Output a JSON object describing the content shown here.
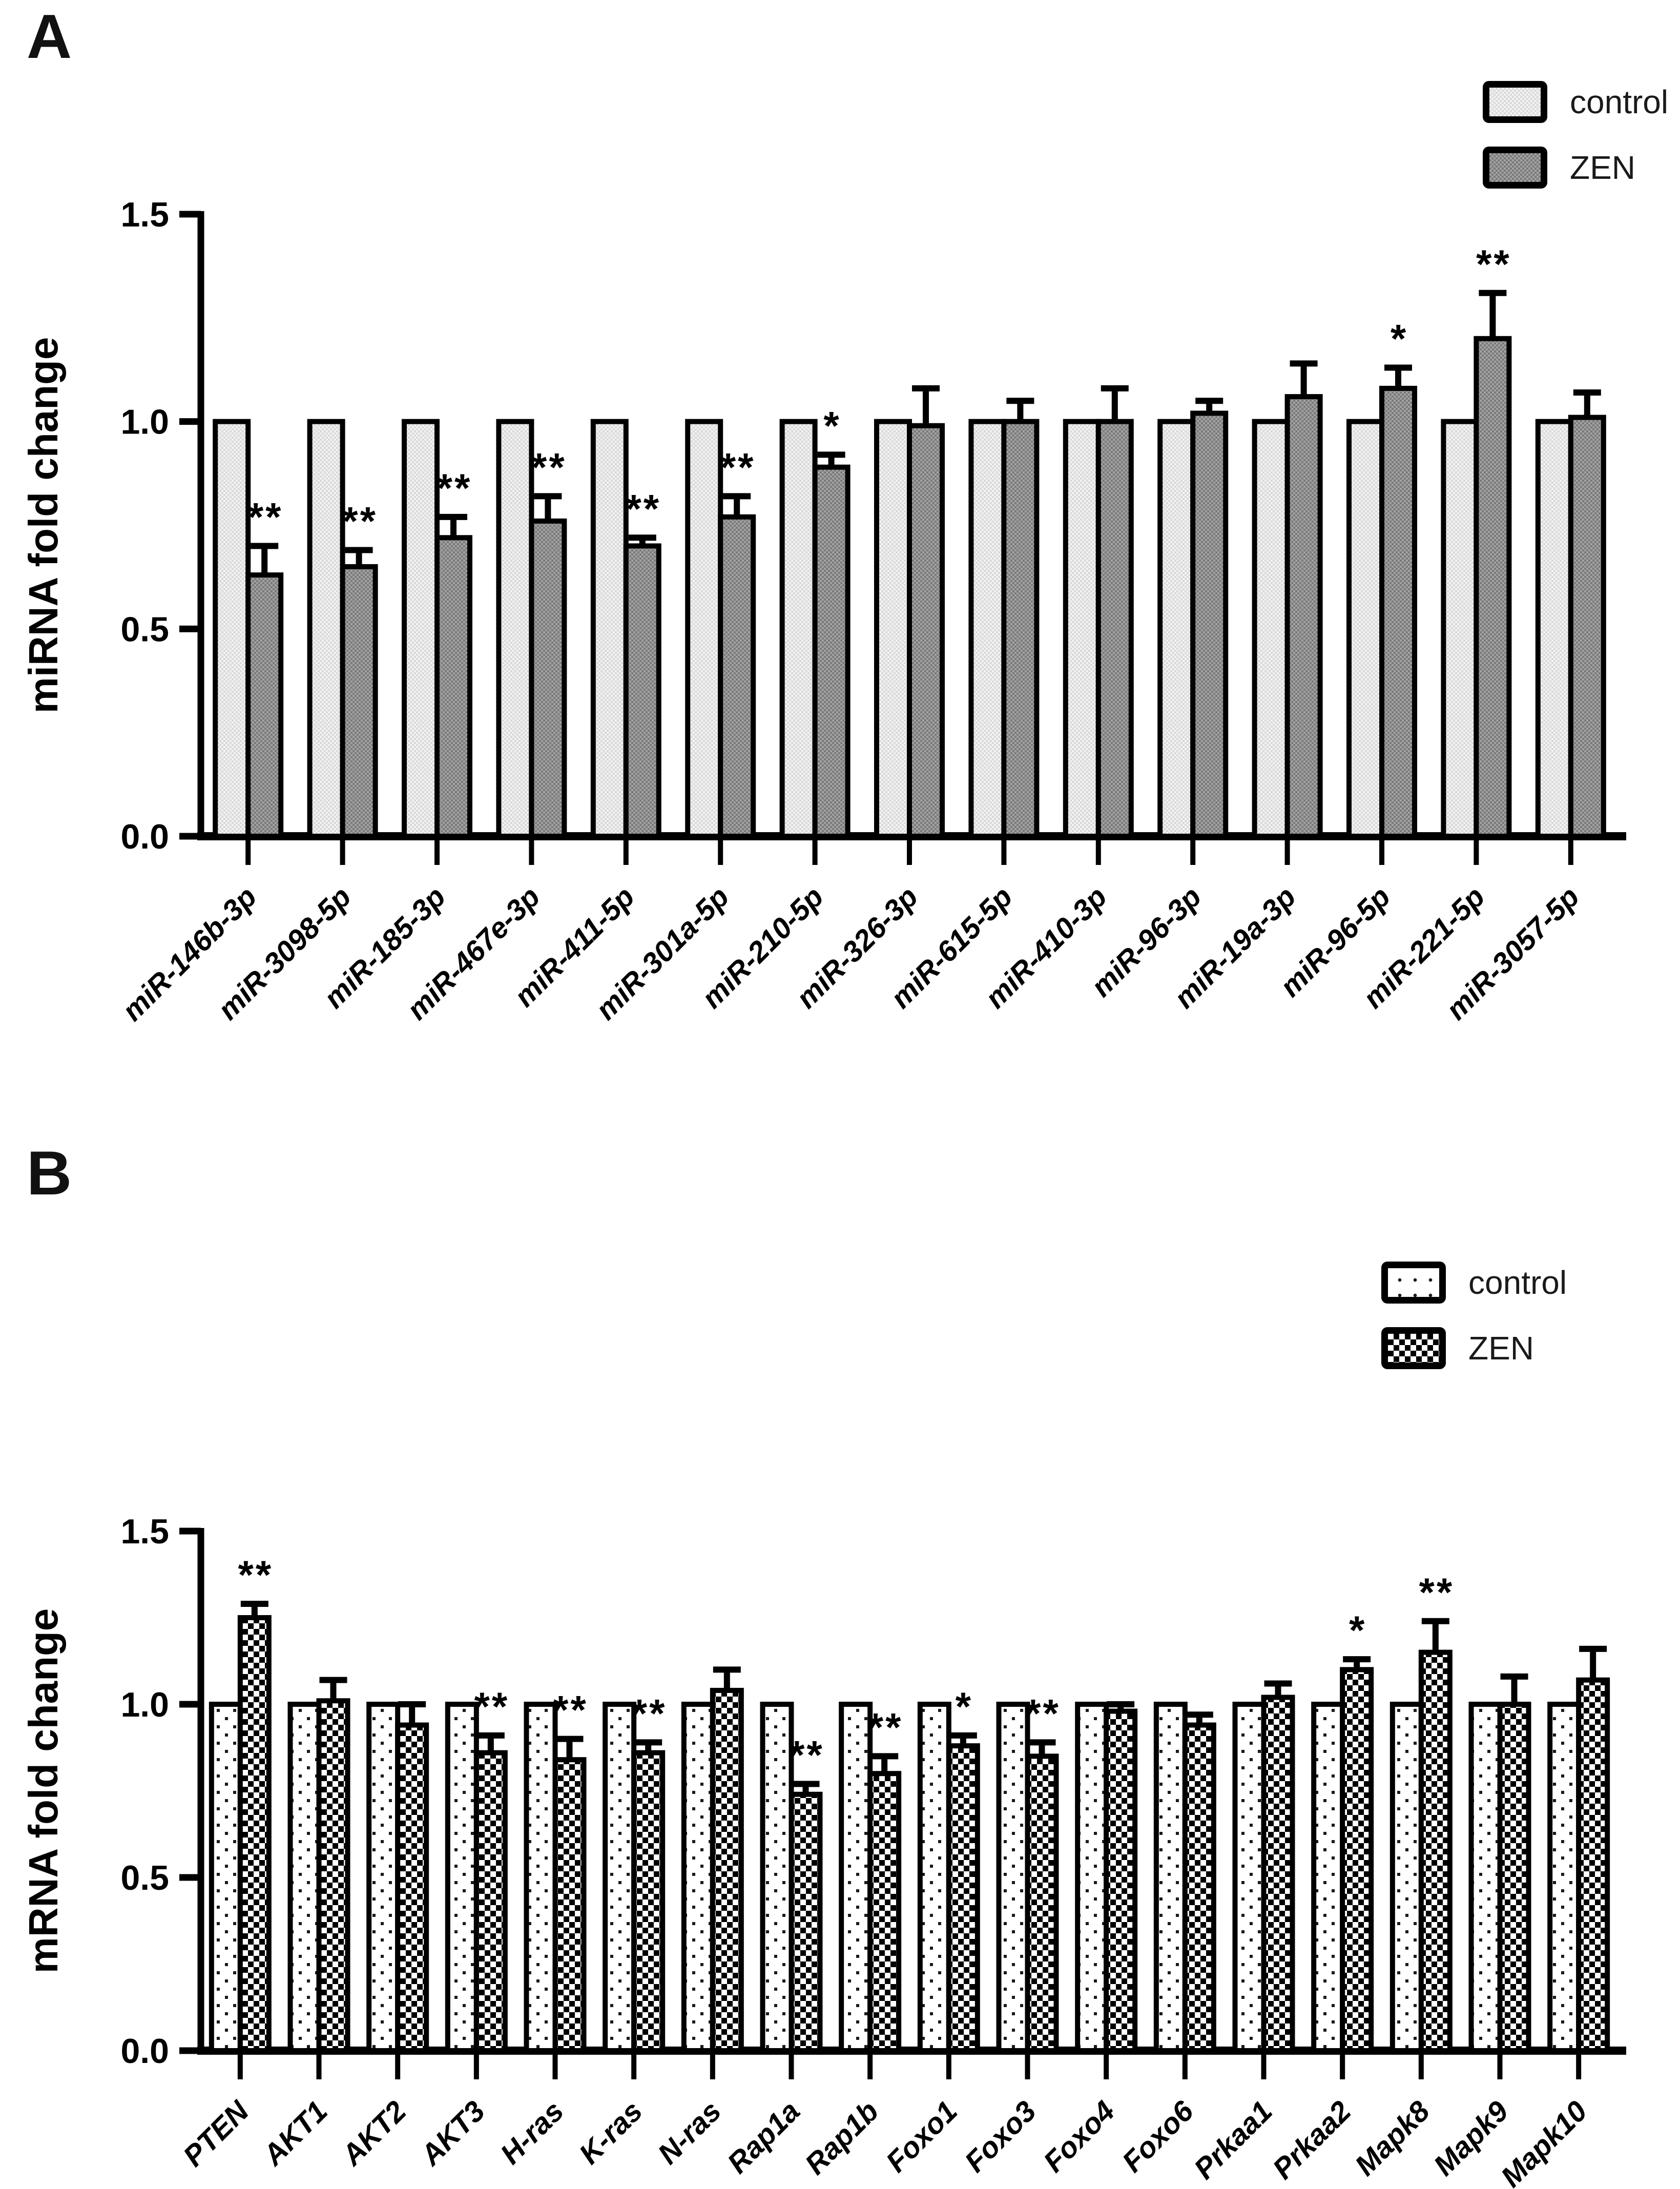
{
  "figure": {
    "panels": [
      {
        "panel_label": "A",
        "legend": {
          "position": "top-right",
          "items": [
            {
              "key": "control",
              "label": "control",
              "swatch": "light-gray-halftone"
            },
            {
              "key": "zen",
              "label": "ZEN",
              "swatch": "dark-gray-halftone"
            }
          ]
        },
        "chart_data": {
          "type": "bar",
          "title": "",
          "xlabel": "",
          "ylabel": "miRNA fold change",
          "ylim": [
            0,
            1.5
          ],
          "yticks": [
            0,
            0.5,
            1.0,
            1.5
          ],
          "ytick_labels": [
            "0.0",
            "0.5",
            "1.0",
            "1.5"
          ],
          "grid": false,
          "legend_position": "top-right",
          "categories": [
            "miR-146b-3p",
            "miR-3098-5p",
            "miR-185-3p",
            "miR-467e-3p",
            "miR-411-5p",
            "miR-301a-5p",
            "miR-210-5p",
            "miR-326-3p",
            "miR-615-5p",
            "miR-410-3p",
            "miR-96-3p",
            "miR-19a-3p",
            "miR-96-5p",
            "miR-221-5p",
            "miR-3057-5p"
          ],
          "series": [
            {
              "name": "control",
              "values": [
                1.0,
                1.0,
                1.0,
                1.0,
                1.0,
                1.0,
                1.0,
                1.0,
                1.0,
                1.0,
                1.0,
                1.0,
                1.0,
                1.0,
                1.0
              ],
              "errors": [
                0,
                0,
                0,
                0,
                0,
                0,
                0,
                0,
                0,
                0,
                0,
                0,
                0,
                0,
                0
              ],
              "significance": [
                "",
                "",
                "",
                "",
                "",
                "",
                "",
                "",
                "",
                "",
                "",
                "",
                "",
                "",
                ""
              ]
            },
            {
              "name": "ZEN",
              "values": [
                0.63,
                0.65,
                0.72,
                0.76,
                0.7,
                0.77,
                0.89,
                0.99,
                1.0,
                1.0,
                1.02,
                1.06,
                1.08,
                1.2,
                1.01
              ],
              "errors": [
                0.07,
                0.04,
                0.05,
                0.06,
                0.02,
                0.05,
                0.03,
                0.09,
                0.05,
                0.08,
                0.03,
                0.08,
                0.05,
                0.11,
                0.06
              ],
              "significance": [
                "**",
                "**",
                "**",
                "**",
                "**",
                "**",
                "*",
                "",
                "",
                "",
                "",
                "",
                "*",
                "**",
                ""
              ]
            }
          ]
        }
      },
      {
        "panel_label": "B",
        "legend": {
          "position": "top-right",
          "items": [
            {
              "key": "control",
              "label": "control",
              "swatch": "white-dotted"
            },
            {
              "key": "zen",
              "label": "ZEN",
              "swatch": "black-checkerboard"
            }
          ]
        },
        "chart_data": {
          "type": "bar",
          "title": "",
          "xlabel": "",
          "ylabel": "mRNA fold change",
          "ylim": [
            0,
            1.5
          ],
          "yticks": [
            0,
            0.5,
            1.0,
            1.5
          ],
          "ytick_labels": [
            "0.0",
            "0.5",
            "1.0",
            "1.5"
          ],
          "grid": false,
          "legend_position": "top-right",
          "categories": [
            "PTEN",
            "AKT1",
            "AKT2",
            "AKT3",
            "H-ras",
            "K-ras",
            "N-ras",
            "Rap1a",
            "Rap1b",
            "Foxo1",
            "Foxo3",
            "Foxo4",
            "Foxo6",
            "Prkaa1",
            "Prkaa2",
            "Mapk8",
            "Mapk9",
            "Mapk10"
          ],
          "series": [
            {
              "name": "control",
              "values": [
                1.0,
                1.0,
                1.0,
                1.0,
                1.0,
                1.0,
                1.0,
                1.0,
                1.0,
                1.0,
                1.0,
                1.0,
                1.0,
                1.0,
                1.0,
                1.0,
                1.0,
                1.0
              ],
              "errors": [
                0,
                0,
                0,
                0,
                0,
                0,
                0,
                0,
                0,
                0,
                0,
                0,
                0,
                0,
                0,
                0,
                0,
                0
              ],
              "significance": [
                "",
                "",
                "",
                "",
                "",
                "",
                "",
                "",
                "",
                "",
                "",
                "",
                "",
                "",
                "",
                "",
                "",
                ""
              ]
            },
            {
              "name": "ZEN",
              "values": [
                1.25,
                1.01,
                0.94,
                0.86,
                0.84,
                0.86,
                1.04,
                0.74,
                0.8,
                0.88,
                0.85,
                0.98,
                0.94,
                1.02,
                1.1,
                1.15,
                1.0,
                1.07
              ],
              "errors": [
                0.04,
                0.06,
                0.06,
                0.05,
                0.06,
                0.03,
                0.06,
                0.03,
                0.05,
                0.03,
                0.04,
                0.02,
                0.03,
                0.04,
                0.03,
                0.09,
                0.08,
                0.09
              ],
              "significance": [
                "**",
                "",
                "",
                "**",
                "**",
                "**",
                "",
                "**",
                "**",
                "*",
                "**",
                "",
                "",
                "",
                "*",
                "**",
                "",
                ""
              ]
            }
          ]
        }
      }
    ]
  }
}
